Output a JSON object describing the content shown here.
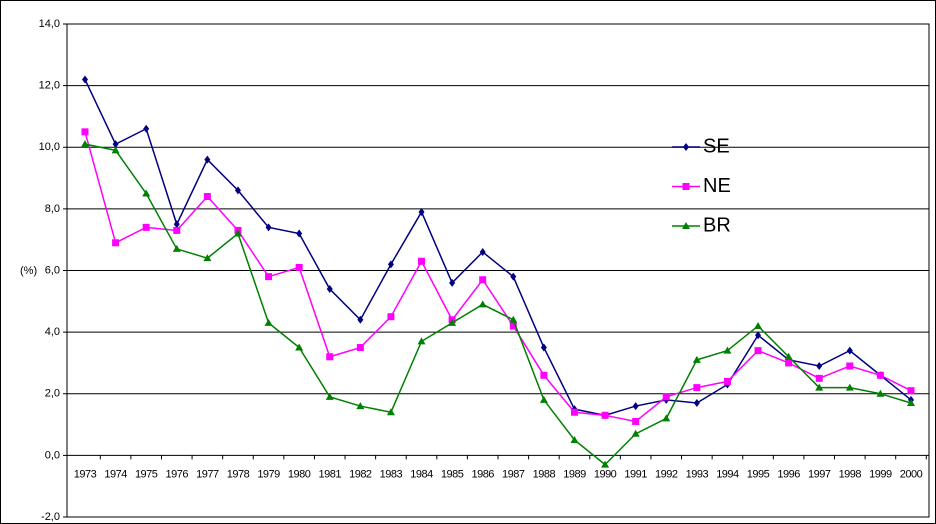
{
  "chart_data": {
    "type": "line",
    "y_label": "(%)",
    "categories": [
      "1973",
      "1974",
      "1975",
      "1976",
      "1977",
      "1978",
      "1979",
      "1980",
      "1981",
      "1982",
      "1983",
      "1984",
      "1985",
      "1986",
      "1987",
      "1988",
      "1989",
      "1990",
      "1991",
      "1992",
      "1993",
      "1994",
      "1995",
      "1996",
      "1997",
      "1998",
      "1999",
      "2000"
    ],
    "series": [
      {
        "name": "SE",
        "color": "#000080",
        "marker": "diamond",
        "values": [
          12.2,
          10.1,
          10.6,
          7.5,
          9.6,
          8.6,
          7.4,
          7.2,
          5.4,
          4.4,
          6.2,
          7.9,
          5.6,
          6.6,
          5.8,
          3.5,
          1.5,
          1.3,
          1.6,
          1.8,
          1.7,
          2.3,
          3.9,
          3.1,
          2.9,
          3.4,
          2.6,
          1.8
        ]
      },
      {
        "name": "NE",
        "color": "#ff00ff",
        "marker": "square",
        "values": [
          10.5,
          6.9,
          7.4,
          7.3,
          8.4,
          7.3,
          5.8,
          6.1,
          3.2,
          3.5,
          4.5,
          6.3,
          4.4,
          5.7,
          4.2,
          2.6,
          1.4,
          1.3,
          1.1,
          1.9,
          2.2,
          2.4,
          3.4,
          3.0,
          2.5,
          2.9,
          2.6,
          2.1
        ]
      },
      {
        "name": "BR",
        "color": "#008000",
        "marker": "triangle",
        "values": [
          10.1,
          9.9,
          8.5,
          6.7,
          6.4,
          7.2,
          4.3,
          3.5,
          1.9,
          1.6,
          1.4,
          3.7,
          4.3,
          4.9,
          4.4,
          1.8,
          0.5,
          -0.3,
          0.7,
          1.2,
          3.1,
          3.4,
          4.2,
          3.2,
          2.2,
          2.2,
          2.0,
          1.7
        ]
      }
    ],
    "ylim": [
      -2,
      14
    ],
    "yticks": [
      {
        "value": -2,
        "label": "-2,0"
      },
      {
        "value": 0,
        "label": "0,0"
      },
      {
        "value": 2,
        "label": "2,0"
      },
      {
        "value": 4,
        "label": "4,0"
      },
      {
        "value": 6,
        "label": "6,0"
      },
      {
        "value": 8,
        "label": "8,0"
      },
      {
        "value": 10,
        "label": "10,0"
      },
      {
        "value": 12,
        "label": "12,0"
      },
      {
        "value": 14,
        "label": "14,0"
      }
    ],
    "grid": true,
    "legend": "right"
  }
}
